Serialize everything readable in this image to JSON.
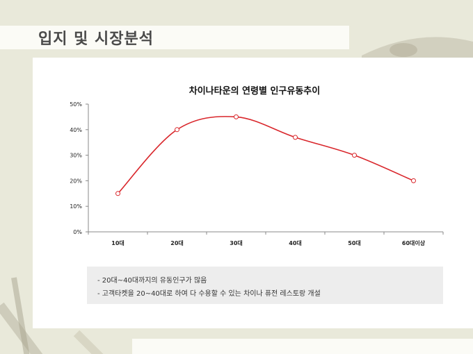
{
  "page": {
    "title": "입지 및 시장분석"
  },
  "notes": [
    "- 20대~40대까지의 유동인구가 많음",
    "- 고객타켓을 20~40대로 하여 다 수용할 수 있는 차이나 퓨전 레스토랑 개설"
  ],
  "chart_data": {
    "type": "line",
    "title": "차이나타운의 연령별 인구유동추이",
    "categories": [
      "10대",
      "20대",
      "30대",
      "40대",
      "50대",
      "60대이상"
    ],
    "values": [
      15,
      40,
      45,
      37,
      30,
      20
    ],
    "ylim": [
      0,
      50
    ],
    "yticks": [
      0,
      10,
      20,
      30,
      40,
      50
    ],
    "ytick_labels": [
      "0%",
      "10%",
      "20%",
      "30%",
      "40%",
      "50%"
    ],
    "xlabel": "",
    "ylabel": "",
    "grid": false,
    "smooth": true,
    "line_color": "#d9262b",
    "marker_fill": "#ffffff"
  }
}
